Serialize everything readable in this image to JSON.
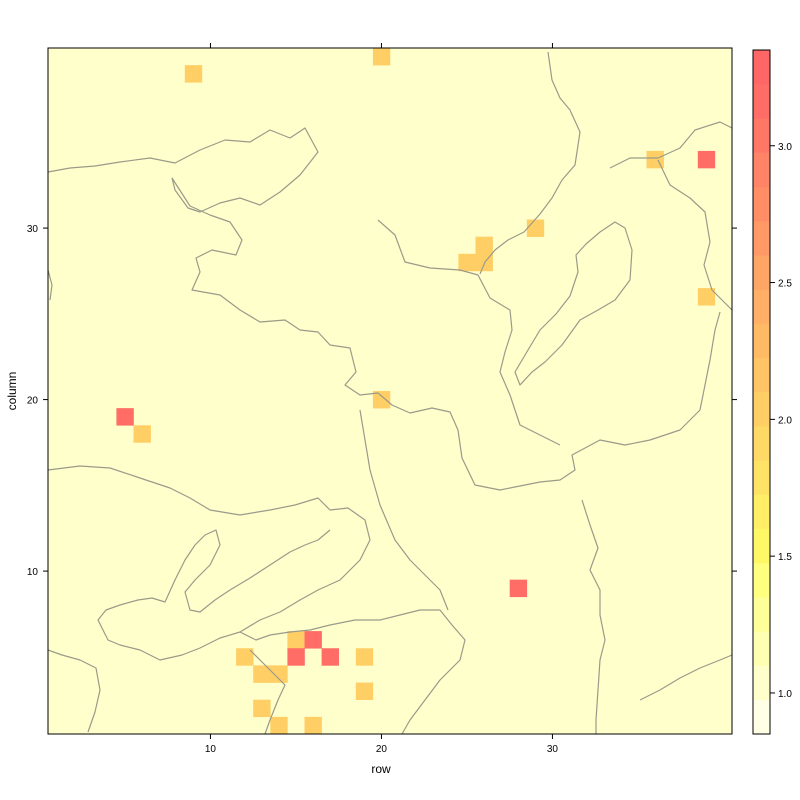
{
  "chart_data": {
    "type": "heatmap",
    "xlabel": "row",
    "ylabel": "column",
    "xlim": [
      0.5,
      40.5
    ],
    "ylim": [
      0.5,
      40.5
    ],
    "x_ticks": [
      10,
      20,
      30
    ],
    "y_ticks": [
      10,
      20,
      30
    ],
    "background_value": 1.0,
    "colorkey": {
      "ticks": [
        1.0,
        1.5,
        2.0,
        2.5,
        3.0
      ],
      "tick_labels": [
        "1.0",
        "1.5",
        "2.0",
        "2.5",
        "3.0"
      ],
      "range": [
        0.85,
        3.35
      ],
      "colors": [
        "#FFFFE6",
        "#FFFFCC",
        "#FFFFB3",
        "#FFFF99",
        "#FFFF80",
        "#FFF866",
        "#FFEE66",
        "#FFE366",
        "#FFD966",
        "#FFCF66",
        "#FFC466",
        "#FFBA66",
        "#FFAF66",
        "#FFA566",
        "#FF9966",
        "#FF8E66",
        "#FF8366",
        "#FF7866",
        "#FF6D66",
        "#FF6666"
      ]
    },
    "cells": [
      {
        "x": 9,
        "y": 39,
        "value": 2.0
      },
      {
        "x": 20,
        "y": 40,
        "value": 2.0
      },
      {
        "x": 36,
        "y": 34,
        "value": 2.0
      },
      {
        "x": 39,
        "y": 34,
        "value": 3.1
      },
      {
        "x": 29,
        "y": 30,
        "value": 2.0
      },
      {
        "x": 26,
        "y": 29,
        "value": 2.0
      },
      {
        "x": 25,
        "y": 28,
        "value": 2.0
      },
      {
        "x": 26,
        "y": 28,
        "value": 2.0
      },
      {
        "x": 39,
        "y": 26,
        "value": 2.0
      },
      {
        "x": 20,
        "y": 20,
        "value": 2.0
      },
      {
        "x": 5,
        "y": 19,
        "value": 3.1
      },
      {
        "x": 6,
        "y": 18,
        "value": 2.0
      },
      {
        "x": 28,
        "y": 9,
        "value": 3.1
      },
      {
        "x": 15,
        "y": 6,
        "value": 2.0
      },
      {
        "x": 16,
        "y": 6,
        "value": 3.1
      },
      {
        "x": 12,
        "y": 5,
        "value": 2.0
      },
      {
        "x": 15,
        "y": 5,
        "value": 3.1
      },
      {
        "x": 17,
        "y": 5,
        "value": 3.1
      },
      {
        "x": 19,
        "y": 5,
        "value": 2.0
      },
      {
        "x": 13,
        "y": 4,
        "value": 2.0
      },
      {
        "x": 14,
        "y": 4,
        "value": 2.0
      },
      {
        "x": 19,
        "y": 3,
        "value": 2.0
      },
      {
        "x": 13,
        "y": 2,
        "value": 2.0
      },
      {
        "x": 14,
        "y": 1,
        "value": 2.0
      },
      {
        "x": 16,
        "y": 1,
        "value": 2.0
      }
    ]
  }
}
